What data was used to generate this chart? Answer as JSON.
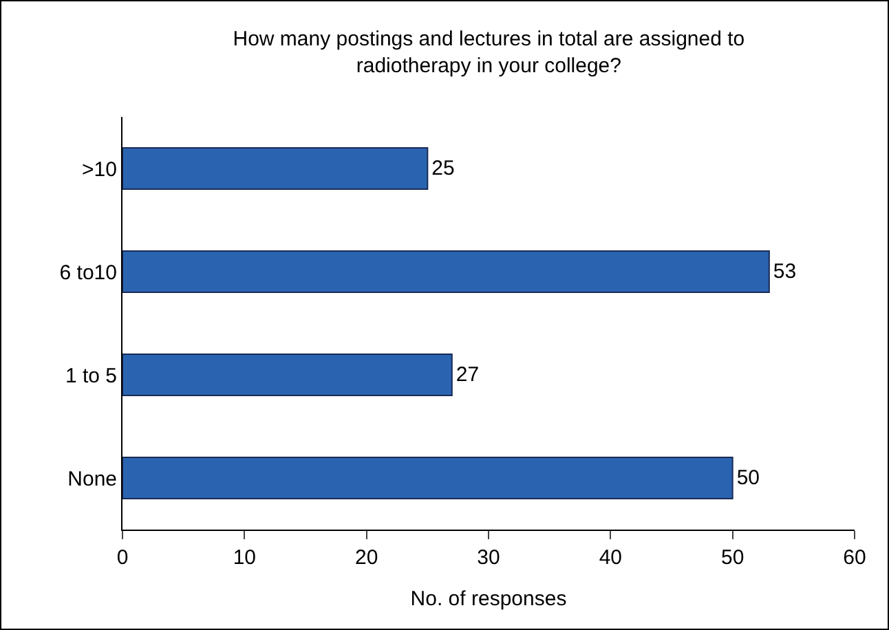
{
  "chart_data": {
    "type": "bar",
    "orientation": "horizontal",
    "title": "How many postings and lectures in total are assigned to radiotherapy in your college?",
    "xlabel": "No. of responses",
    "categories": [
      ">10",
      "6 to10",
      "1 to 5",
      "None"
    ],
    "values": [
      25,
      53,
      27,
      50
    ],
    "color": "#2a64b0",
    "xlim": [
      0,
      60
    ],
    "xticks": [
      0,
      10,
      20,
      30,
      40,
      50,
      60
    ],
    "grid": false,
    "data_labels": true
  }
}
